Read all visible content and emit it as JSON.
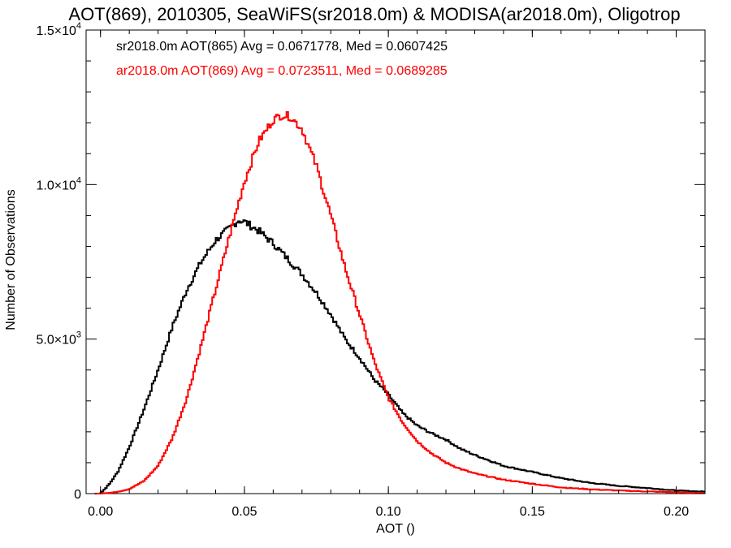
{
  "chart_data": {
    "type": "histogram",
    "title": "AOT(869), 2010305, SeaWiFS(sr2018.0m) & MODISA(ar2018.0m), Oligotrop",
    "xlabel": "AOT ()",
    "ylabel": "Number of Observations",
    "xlim": [
      -0.005,
      0.21
    ],
    "ylim": [
      0,
      15000
    ],
    "grid": false,
    "x_ticks": [
      {
        "value": 0.0,
        "label": "0.00"
      },
      {
        "value": 0.05,
        "label": "0.05"
      },
      {
        "value": 0.1,
        "label": "0.10"
      },
      {
        "value": 0.15,
        "label": "0.15"
      },
      {
        "value": 0.2,
        "label": "0.20"
      }
    ],
    "y_ticks": [
      {
        "value": 0,
        "mant": "0",
        "exp": ""
      },
      {
        "value": 5000,
        "mant": "5.0×10",
        "exp": "3"
      },
      {
        "value": 10000,
        "mant": "1.0×10",
        "exp": "4"
      },
      {
        "value": 15000,
        "mant": "1.5×10",
        "exp": "4"
      }
    ],
    "legend_position": "top-left",
    "series": [
      {
        "name": "sr2018.0m",
        "legend": "sr2018.0m AOT(865) Avg = 0.0671778, Med = 0.0607425",
        "color": "#000000",
        "step": "mid",
        "x": [
          0.0,
          0.003,
          0.006,
          0.01,
          0.015,
          0.02,
          0.025,
          0.03,
          0.035,
          0.04,
          0.045,
          0.048,
          0.05,
          0.055,
          0.06,
          0.065,
          0.07,
          0.075,
          0.08,
          0.085,
          0.09,
          0.095,
          0.1,
          0.105,
          0.11,
          0.115,
          0.12,
          0.125,
          0.13,
          0.14,
          0.15,
          0.16,
          0.17,
          0.18,
          0.19,
          0.2,
          0.21
        ],
        "values": [
          0,
          300,
          700,
          1500,
          2700,
          4000,
          5400,
          6600,
          7500,
          8200,
          8600,
          8850,
          8800,
          8500,
          8100,
          7600,
          7100,
          6500,
          5800,
          5000,
          4400,
          3700,
          3200,
          2600,
          2200,
          1950,
          1750,
          1450,
          1250,
          900,
          700,
          500,
          350,
          250,
          180,
          100,
          60
        ]
      },
      {
        "name": "ar2018.0m",
        "legend": "ar2018.0m AOT(869) Avg = 0.0723511, Med = 0.0689285",
        "color": "#ff0000",
        "step": "mid",
        "x": [
          0.0,
          0.005,
          0.01,
          0.015,
          0.02,
          0.025,
          0.03,
          0.035,
          0.04,
          0.045,
          0.05,
          0.055,
          0.06,
          0.063,
          0.066,
          0.07,
          0.075,
          0.08,
          0.085,
          0.09,
          0.095,
          0.1,
          0.105,
          0.11,
          0.115,
          0.12,
          0.125,
          0.13,
          0.14,
          0.15,
          0.16,
          0.17,
          0.18,
          0.19,
          0.2,
          0.21
        ],
        "values": [
          0,
          40,
          150,
          400,
          900,
          1800,
          3100,
          4800,
          6600,
          8400,
          10100,
          11400,
          12100,
          12250,
          12200,
          11800,
          10600,
          9000,
          7300,
          5800,
          4300,
          3100,
          2300,
          1700,
          1300,
          1000,
          800,
          650,
          450,
          320,
          200,
          140,
          100,
          70,
          40,
          20
        ]
      }
    ]
  }
}
